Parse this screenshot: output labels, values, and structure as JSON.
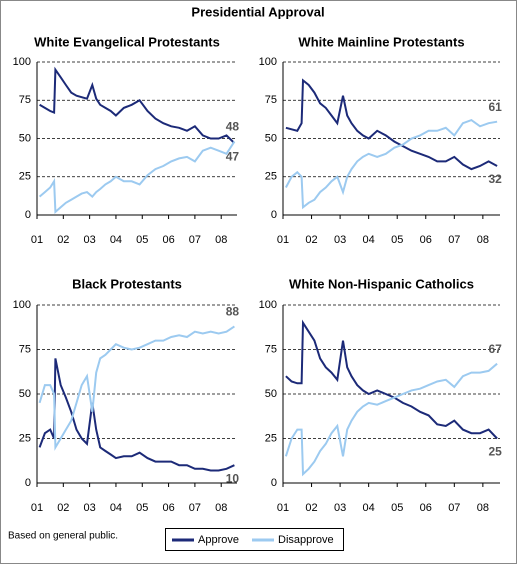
{
  "title": "Presidential Approval",
  "footnote": "Based on general public.",
  "chart_data": [
    {
      "type": "line",
      "title": "White Evangelical Protestants",
      "x": [
        1.1,
        1.3,
        1.5,
        1.65,
        1.7,
        1.9,
        2.1,
        2.3,
        2.5,
        2.7,
        2.9,
        3.1,
        3.25,
        3.4,
        3.6,
        3.8,
        4.0,
        4.3,
        4.6,
        4.9,
        5.2,
        5.5,
        5.8,
        6.1,
        6.4,
        6.7,
        7.0,
        7.3,
        7.6,
        7.9,
        8.2,
        8.5
      ],
      "xlim": [
        1,
        8.6
      ],
      "xticks": [
        {
          "value": 1,
          "label": "01"
        },
        {
          "value": 2,
          "label": "02"
        },
        {
          "value": 3,
          "label": "03"
        },
        {
          "value": 4,
          "label": "04"
        },
        {
          "value": 5,
          "label": "05"
        },
        {
          "value": 6,
          "label": "06"
        },
        {
          "value": 7,
          "label": "07"
        },
        {
          "value": 8,
          "label": "08"
        }
      ],
      "ylim": [
        0,
        100
      ],
      "yticks": [
        0,
        25,
        50,
        75,
        100
      ],
      "grid": true,
      "series": [
        {
          "name": "Approve",
          "color": "#1c2a78",
          "values": [
            72,
            70,
            68,
            67,
            95,
            90,
            85,
            80,
            78,
            77,
            76,
            85,
            76,
            72,
            70,
            68,
            65,
            70,
            72,
            75,
            68,
            63,
            60,
            58,
            57,
            55,
            58,
            52,
            50,
            50,
            52,
            47
          ]
        },
        {
          "name": "Disapprove",
          "color": "#9ccaf0",
          "values": [
            12,
            15,
            18,
            22,
            2,
            5,
            8,
            10,
            12,
            14,
            15,
            12,
            15,
            17,
            20,
            22,
            25,
            22,
            22,
            20,
            26,
            30,
            32,
            35,
            37,
            38,
            35,
            42,
            44,
            42,
            40,
            48
          ]
        }
      ]
    },
    {
      "type": "line",
      "title": "White Mainline Protestants",
      "x": [
        1.1,
        1.3,
        1.5,
        1.65,
        1.7,
        1.9,
        2.1,
        2.3,
        2.5,
        2.7,
        2.9,
        3.1,
        3.25,
        3.4,
        3.6,
        3.8,
        4.0,
        4.3,
        4.6,
        4.9,
        5.2,
        5.5,
        5.8,
        6.1,
        6.4,
        6.7,
        7.0,
        7.3,
        7.6,
        7.9,
        8.2,
        8.5
      ],
      "xlim": [
        1,
        8.6
      ],
      "xticks": [
        {
          "value": 1,
          "label": "01"
        },
        {
          "value": 2,
          "label": "02"
        },
        {
          "value": 3,
          "label": "03"
        },
        {
          "value": 4,
          "label": "04"
        },
        {
          "value": 5,
          "label": "05"
        },
        {
          "value": 6,
          "label": "06"
        },
        {
          "value": 7,
          "label": "07"
        },
        {
          "value": 8,
          "label": "08"
        }
      ],
      "ylim": [
        0,
        100
      ],
      "yticks": [
        0,
        25,
        50,
        75,
        100
      ],
      "grid": true,
      "series": [
        {
          "name": "Approve",
          "color": "#1c2a78",
          "values": [
            57,
            56,
            55,
            60,
            88,
            85,
            80,
            73,
            70,
            65,
            60,
            78,
            65,
            60,
            55,
            52,
            50,
            55,
            52,
            48,
            45,
            42,
            40,
            38,
            35,
            35,
            38,
            33,
            30,
            32,
            35,
            32
          ]
        },
        {
          "name": "Disapprove",
          "color": "#9ccaf0",
          "values": [
            18,
            25,
            28,
            25,
            5,
            8,
            10,
            15,
            18,
            22,
            25,
            15,
            25,
            30,
            35,
            38,
            40,
            38,
            40,
            44,
            46,
            50,
            52,
            55,
            55,
            57,
            52,
            60,
            62,
            58,
            60,
            61
          ]
        }
      ]
    },
    {
      "type": "line",
      "title": "Black Protestants",
      "x": [
        1.1,
        1.3,
        1.5,
        1.65,
        1.7,
        1.9,
        2.1,
        2.3,
        2.5,
        2.7,
        2.9,
        3.1,
        3.25,
        3.4,
        3.6,
        3.8,
        4.0,
        4.3,
        4.6,
        4.9,
        5.2,
        5.5,
        5.8,
        6.1,
        6.4,
        6.7,
        7.0,
        7.3,
        7.6,
        7.9,
        8.2,
        8.5
      ],
      "xlim": [
        1,
        8.6
      ],
      "xticks": [
        {
          "value": 1,
          "label": "01"
        },
        {
          "value": 2,
          "label": "02"
        },
        {
          "value": 3,
          "label": "03"
        },
        {
          "value": 4,
          "label": "04"
        },
        {
          "value": 5,
          "label": "05"
        },
        {
          "value": 6,
          "label": "06"
        },
        {
          "value": 7,
          "label": "07"
        },
        {
          "value": 8,
          "label": "08"
        }
      ],
      "ylim": [
        0,
        100
      ],
      "yticks": [
        0,
        25,
        50,
        75,
        100
      ],
      "grid": true,
      "series": [
        {
          "name": "Approve",
          "color": "#1c2a78",
          "values": [
            20,
            28,
            30,
            25,
            70,
            55,
            48,
            40,
            30,
            25,
            22,
            45,
            30,
            20,
            18,
            16,
            14,
            15,
            15,
            17,
            14,
            12,
            12,
            12,
            10,
            10,
            8,
            8,
            7,
            7,
            8,
            10
          ]
        },
        {
          "name": "Disapprove",
          "color": "#9ccaf0",
          "values": [
            45,
            55,
            55,
            50,
            20,
            25,
            30,
            35,
            45,
            55,
            60,
            40,
            62,
            70,
            72,
            75,
            78,
            76,
            75,
            76,
            78,
            80,
            80,
            82,
            83,
            82,
            85,
            84,
            85,
            84,
            85,
            88
          ]
        }
      ]
    },
    {
      "type": "line",
      "title": "White Non-Hispanic Catholics",
      "x": [
        1.1,
        1.3,
        1.5,
        1.65,
        1.7,
        1.9,
        2.1,
        2.3,
        2.5,
        2.7,
        2.9,
        3.1,
        3.25,
        3.4,
        3.6,
        3.8,
        4.0,
        4.3,
        4.6,
        4.9,
        5.2,
        5.5,
        5.8,
        6.1,
        6.4,
        6.7,
        7.0,
        7.3,
        7.6,
        7.9,
        8.2,
        8.5
      ],
      "xlim": [
        1,
        8.6
      ],
      "xticks": [
        {
          "value": 1,
          "label": "01"
        },
        {
          "value": 2,
          "label": "02"
        },
        {
          "value": 3,
          "label": "03"
        },
        {
          "value": 4,
          "label": "04"
        },
        {
          "value": 5,
          "label": "05"
        },
        {
          "value": 6,
          "label": "06"
        },
        {
          "value": 7,
          "label": "07"
        },
        {
          "value": 8,
          "label": "08"
        }
      ],
      "ylim": [
        0,
        100
      ],
      "yticks": [
        0,
        25,
        50,
        75,
        100
      ],
      "grid": true,
      "series": [
        {
          "name": "Approve",
          "color": "#1c2a78",
          "values": [
            60,
            57,
            56,
            56,
            90,
            85,
            80,
            70,
            65,
            62,
            58,
            80,
            65,
            60,
            55,
            52,
            50,
            52,
            50,
            48,
            45,
            43,
            40,
            38,
            33,
            32,
            35,
            30,
            28,
            28,
            30,
            25
          ]
        },
        {
          "name": "Disapprove",
          "color": "#9ccaf0",
          "values": [
            15,
            25,
            30,
            30,
            5,
            8,
            12,
            18,
            22,
            28,
            32,
            15,
            30,
            35,
            40,
            43,
            45,
            44,
            46,
            48,
            50,
            52,
            53,
            55,
            57,
            58,
            54,
            60,
            62,
            62,
            63,
            67
          ]
        }
      ]
    }
  ]
}
